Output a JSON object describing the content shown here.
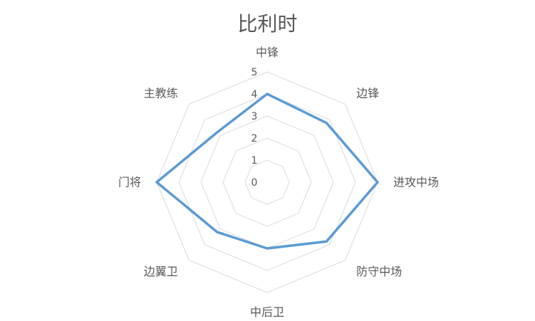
{
  "chart_data": {
    "type": "radar",
    "title": "比利时",
    "categories": [
      "中锋",
      "边锋",
      "进攻中场",
      "防守中场",
      "中后卫",
      "边翼卫",
      "门将",
      "主教练"
    ],
    "series": [
      {
        "values": [
          4,
          3.8,
          5,
          3.8,
          3,
          3.2,
          5,
          3.2
        ],
        "color": "#5b9bd5"
      }
    ],
    "rlim": [
      0,
      5
    ],
    "ticks": [
      "0",
      "1",
      "2",
      "3",
      "4",
      "5"
    ],
    "grid": true,
    "grid_color": "#d9d9d9",
    "legend": "none"
  }
}
